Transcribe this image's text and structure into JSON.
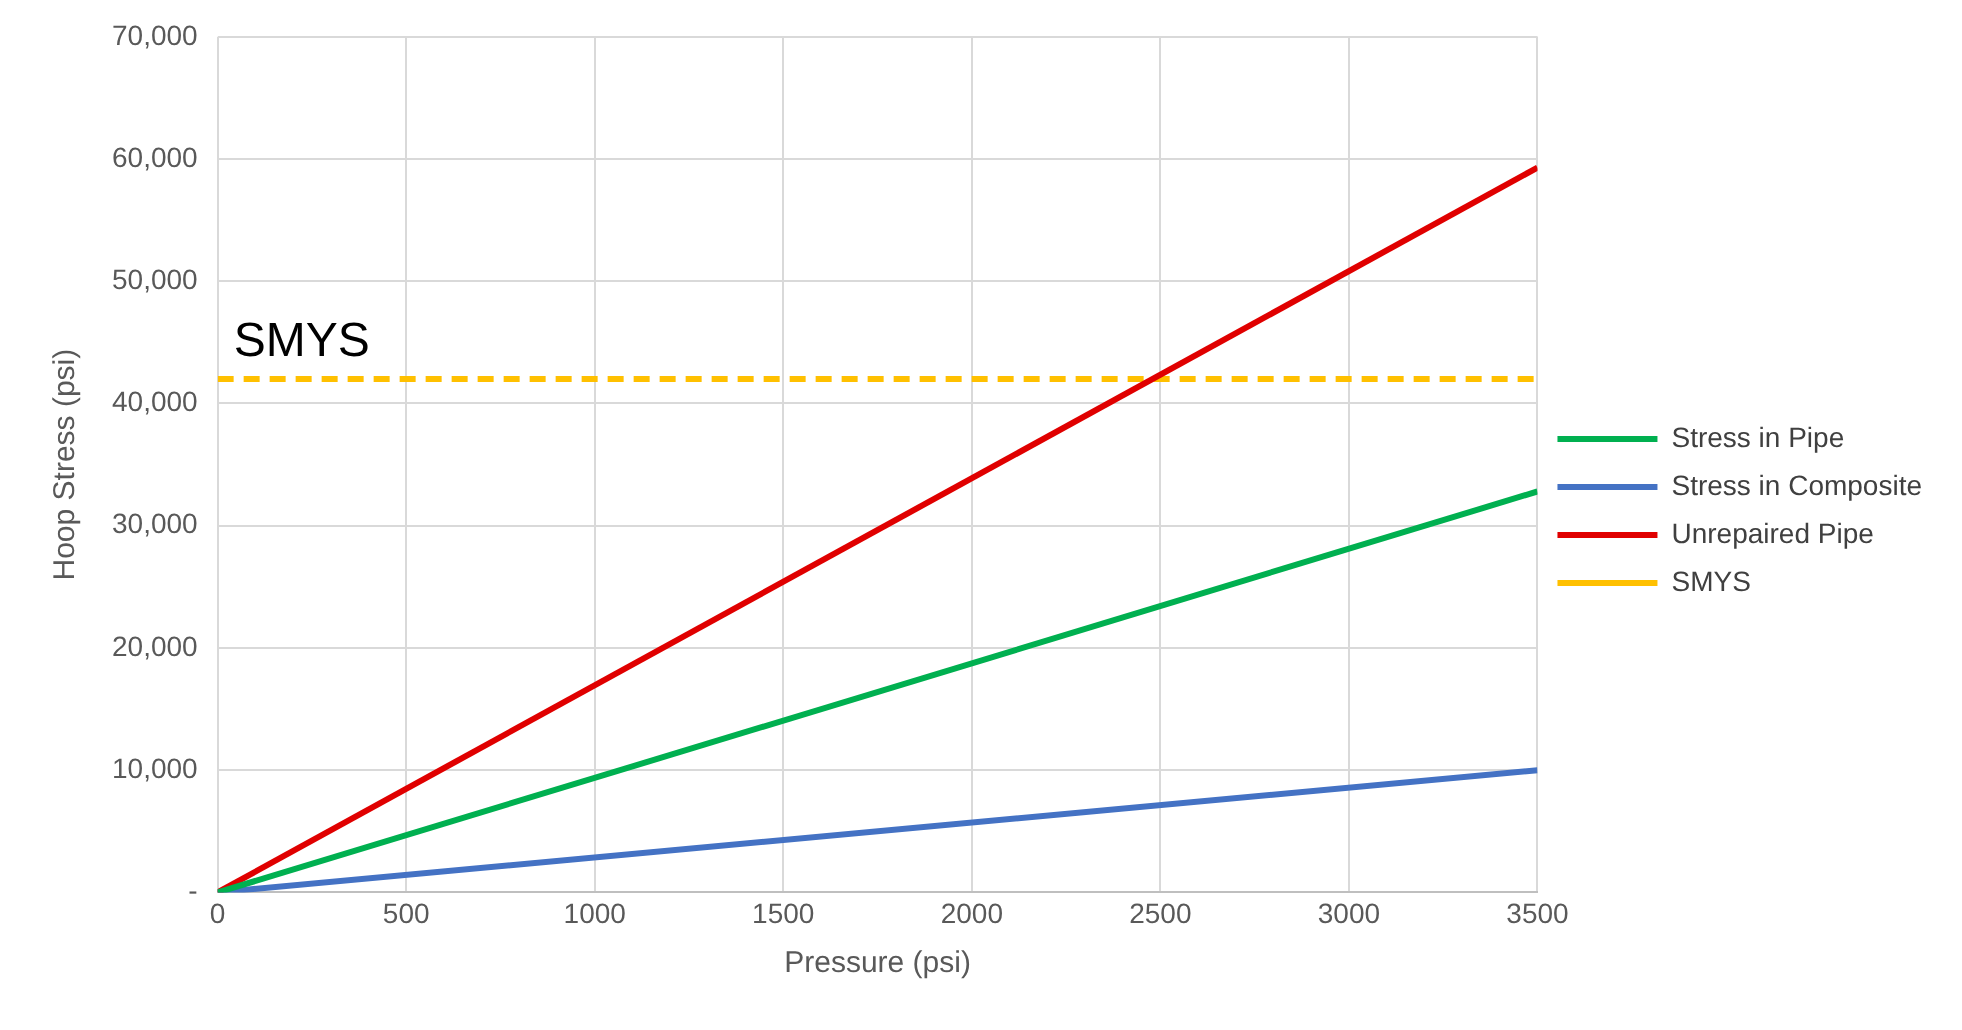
{
  "chart_data": {
    "type": "line",
    "xlabel": "Pressure (psi)",
    "ylabel": "Hoop Stress (psi)",
    "x": [
      0,
      3500
    ],
    "series": [
      {
        "name": "Stress in Pipe",
        "color": "#00b050",
        "values": [
          0,
          32800
        ]
      },
      {
        "name": "Stress in Composite",
        "color": "#4472c4",
        "values": [
          0,
          10000
        ]
      },
      {
        "name": "Unrepaired Pipe",
        "color": "#e00000",
        "values": [
          0,
          59300
        ]
      },
      {
        "name": "SMYS",
        "color": "#ffc000",
        "values": [
          42000,
          42000
        ],
        "line_style": "dashed"
      }
    ],
    "annotations": [
      {
        "text": "SMYS",
        "x": 0,
        "y": 42000
      }
    ],
    "xlim": [
      0,
      3500
    ],
    "xticks": [
      0,
      500,
      1000,
      1500,
      2000,
      2500,
      3000,
      3500
    ],
    "ylim": [
      0,
      70000
    ],
    "yticks": [
      {
        "value": 0,
        "label": "-"
      },
      {
        "value": 10000,
        "label": "10,000"
      },
      {
        "value": 20000,
        "label": "20,000"
      },
      {
        "value": 30000,
        "label": "30,000"
      },
      {
        "value": 40000,
        "label": "40,000"
      },
      {
        "value": 50000,
        "label": "50,000"
      },
      {
        "value": 60000,
        "label": "60,000"
      },
      {
        "value": 70000,
        "label": "70,000"
      }
    ],
    "grid": true,
    "legend": "right",
    "marker": "none",
    "line_style": "solid"
  }
}
